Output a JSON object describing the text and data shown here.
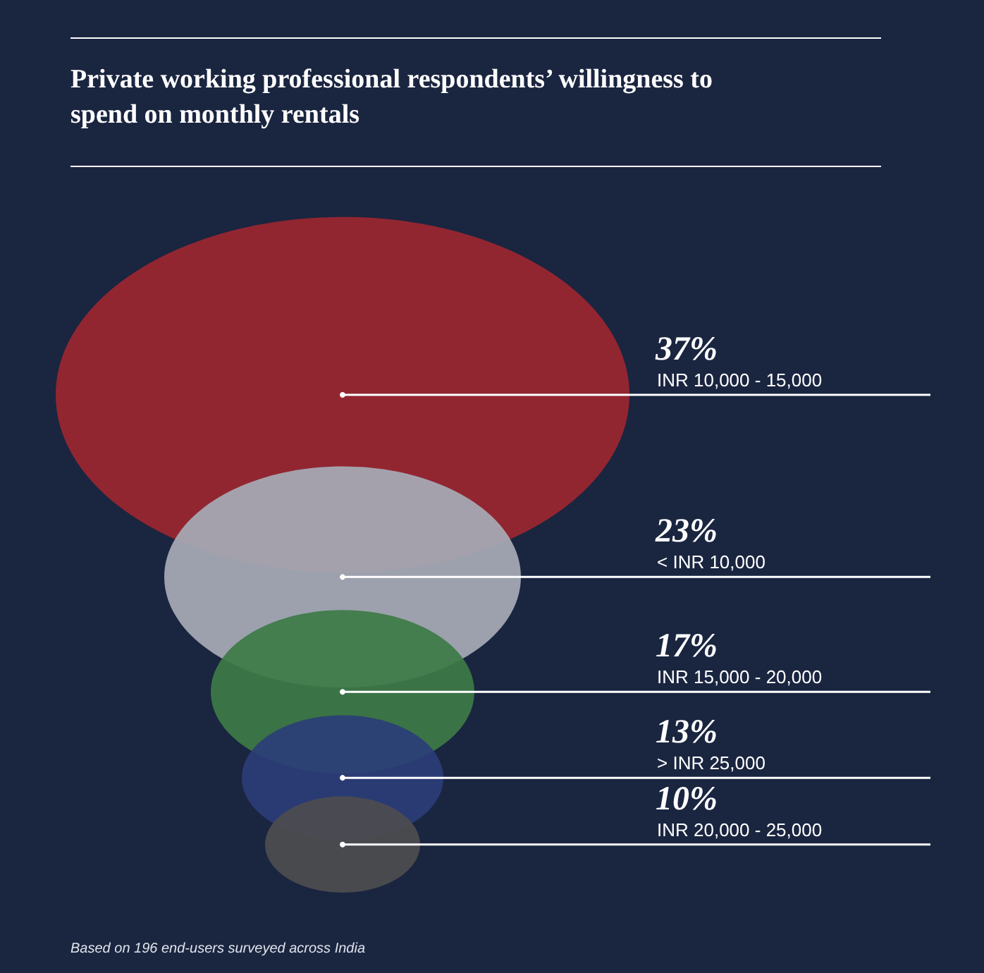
{
  "chart_data": {
    "type": "other",
    "title": "Private working professional respondents’ willingness to spend on monthly rentals",
    "categories": [
      "INR 10,000 - 15,000",
      "< INR 10,000",
      "INR 15,000 - 20,000",
      "> INR 25,000",
      "INR 20,000 - 25,000"
    ],
    "values": [
      37,
      23,
      17,
      13,
      10
    ],
    "value_labels": [
      "37%",
      "23%",
      "17%",
      "13%",
      "10%"
    ],
    "colors": [
      "#9b2630",
      "#a7abb6",
      "#3d7a45",
      "#2b3d78",
      "#4d4d4f"
    ],
    "annotations": [
      "Based on 196 end-users surveyed across India"
    ]
  }
}
